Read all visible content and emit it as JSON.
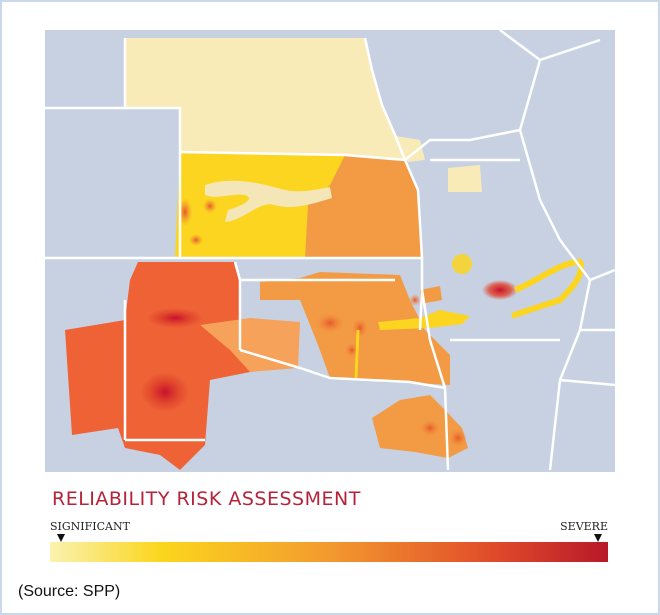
{
  "title": "RELIABILITY RISK ASSESSMENT",
  "legend": {
    "low_label": "SIGNIFICANT",
    "high_label": "SEVERE"
  },
  "source": "(Source: SPP)"
}
